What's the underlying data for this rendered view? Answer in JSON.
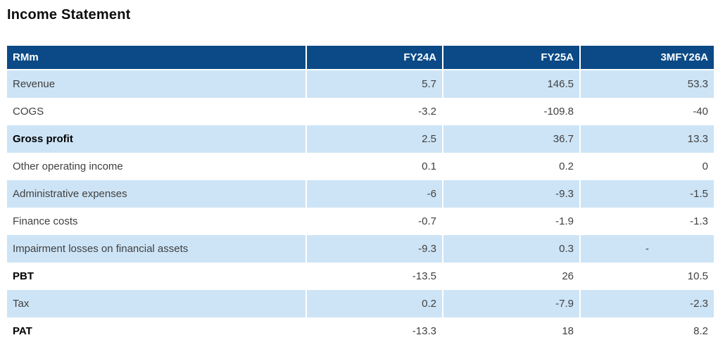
{
  "title": "Income Statement",
  "colors": {
    "header_bg": "#0B4A86",
    "row_shaded": "#CDE4F6",
    "header_text": "#FFFFFF",
    "body_text": "#404040",
    "bold_text": "#000000"
  },
  "table": {
    "columns": [
      "RMm",
      "FY24A",
      "FY25A",
      "3MFY26A"
    ],
    "rows": [
      {
        "label": "Revenue",
        "values": [
          "5.7",
          "146.5",
          "53.3"
        ],
        "bold": false,
        "shaded": true
      },
      {
        "label": "COGS",
        "values": [
          "-3.2",
          "-109.8",
          "-40"
        ],
        "bold": false,
        "shaded": false
      },
      {
        "label": "Gross profit",
        "values": [
          "2.5",
          "36.7",
          "13.3"
        ],
        "bold": true,
        "shaded": true
      },
      {
        "label": "Other operating income",
        "values": [
          "0.1",
          "0.2",
          "0"
        ],
        "bold": false,
        "shaded": false
      },
      {
        "label": "Administrative expenses",
        "values": [
          "-6",
          "-9.3",
          "-1.5"
        ],
        "bold": false,
        "shaded": true
      },
      {
        "label": "Finance costs",
        "values": [
          "-0.7",
          "-1.9",
          "-1.3"
        ],
        "bold": false,
        "shaded": false
      },
      {
        "label": "Impairment losses on financial assets",
        "values": [
          "-9.3",
          "0.3",
          "-"
        ],
        "bold": false,
        "shaded": true
      },
      {
        "label": "PBT",
        "values": [
          "-13.5",
          "26",
          "10.5"
        ],
        "bold": true,
        "shaded": false
      },
      {
        "label": "Tax",
        "values": [
          "0.2",
          "-7.9",
          "-2.3"
        ],
        "bold": false,
        "shaded": true
      },
      {
        "label": "PAT",
        "values": [
          "-13.3",
          "18",
          "8.2"
        ],
        "bold": true,
        "shaded": false
      }
    ]
  },
  "chart_data": {
    "type": "table",
    "title": "Income Statement",
    "unit_label": "RMm",
    "categories": [
      "Revenue",
      "COGS",
      "Gross profit",
      "Other operating income",
      "Administrative expenses",
      "Finance costs",
      "Impairment losses on financial assets",
      "PBT",
      "Tax",
      "PAT"
    ],
    "series": [
      {
        "name": "FY24A",
        "values": [
          5.7,
          -3.2,
          2.5,
          0.1,
          -6,
          -0.7,
          -9.3,
          -13.5,
          0.2,
          -13.3
        ]
      },
      {
        "name": "FY25A",
        "values": [
          146.5,
          -109.8,
          36.7,
          0.2,
          -9.3,
          -1.9,
          0.3,
          26,
          -7.9,
          18
        ]
      },
      {
        "name": "3MFY26A",
        "values": [
          53.3,
          -40,
          13.3,
          0,
          -1.5,
          -1.3,
          null,
          10.5,
          -2.3,
          8.2
        ]
      }
    ]
  }
}
